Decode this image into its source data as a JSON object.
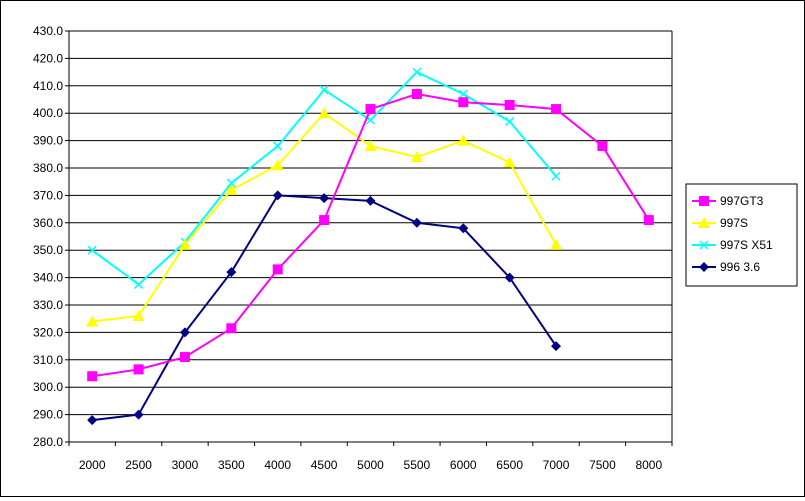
{
  "chart_data": {
    "type": "line",
    "title": "",
    "xlabel": "",
    "ylabel": "",
    "categories": [
      "2000",
      "2500",
      "3000",
      "3500",
      "4000",
      "4500",
      "5000",
      "5500",
      "6000",
      "6500",
      "7000",
      "7500",
      "8000"
    ],
    "y_tick_labels": [
      "280.0",
      "290.0",
      "300.0",
      "310.0",
      "320.0",
      "330.0",
      "340.0",
      "350.0",
      "360.0",
      "370.0",
      "380.0",
      "390.0",
      "400.0",
      "410.0",
      "420.0",
      "430.0"
    ],
    "ylim": [
      280,
      430
    ],
    "grid": "horizontal",
    "legend_position": "right",
    "series": [
      {
        "name": "997GT3",
        "color": "#ff00ff",
        "marker": "square",
        "values": [
          304,
          306.5,
          311,
          321.5,
          343,
          361,
          401.5,
          407,
          404,
          403,
          401.5,
          388,
          361
        ]
      },
      {
        "name": "997S",
        "color": "#ffff00",
        "marker": "triangle",
        "values": [
          324,
          326,
          352,
          372,
          381,
          400,
          388,
          384,
          390,
          382,
          352,
          null,
          null
        ]
      },
      {
        "name": "997S X51",
        "color": "#00ffff",
        "marker": "x",
        "values": [
          350,
          337.5,
          353,
          374.5,
          388,
          408.5,
          397.5,
          415,
          407,
          397,
          377,
          null,
          null
        ]
      },
      {
        "name": "996 3.6",
        "color": "#000080",
        "marker": "diamond",
        "values": [
          288,
          290,
          320,
          342,
          370,
          369,
          368,
          360,
          358,
          340,
          315,
          null,
          null
        ]
      }
    ]
  }
}
